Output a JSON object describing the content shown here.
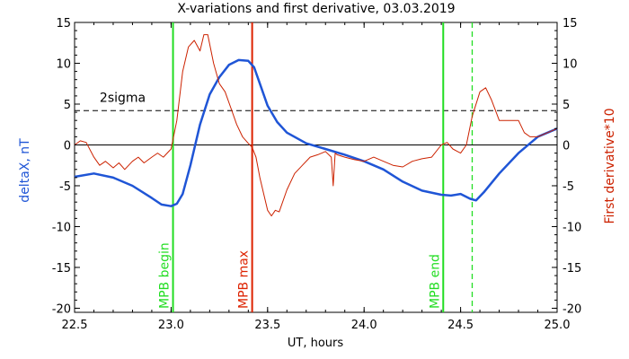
{
  "chart_data": {
    "type": "line",
    "title": "X-variations and first derivative, 03.03.2019",
    "xlabel": "UT, hours",
    "ylabel_left": "deltaX, nT",
    "ylabel_right": "First derivative*10",
    "xlim": [
      22.5,
      25.0
    ],
    "ylim": [
      -20.5,
      15
    ],
    "x_ticks": [
      22.5,
      23.0,
      23.5,
      24.0,
      24.5,
      25.0
    ],
    "x_tick_labels": [
      "22.5",
      "23.0",
      "23.5",
      "24.0",
      "24.5",
      "25.0"
    ],
    "y_ticks": [
      -20,
      -15,
      -10,
      -5,
      0,
      5,
      10,
      15
    ],
    "y_tick_labels": [
      "-20",
      "-15",
      "-10",
      "-5",
      "0",
      "5",
      "10",
      "15"
    ],
    "grid": false,
    "reference_lines": [
      {
        "type": "horizontal",
        "y": 0,
        "style": "solid",
        "color": "#000000"
      },
      {
        "type": "horizontal",
        "y": 4.2,
        "style": "dashed",
        "color": "#000000",
        "label": "2sigma"
      }
    ],
    "markers": [
      {
        "x": 23.01,
        "label": "MPB begin",
        "color": "#22dd22",
        "style": "solid"
      },
      {
        "x": 23.42,
        "label": "MPB max",
        "color": "#dd2200",
        "style": "solid"
      },
      {
        "x": 24.41,
        "label": "MPB end",
        "color": "#22dd22",
        "style": "solid"
      },
      {
        "x": 24.56,
        "label": "",
        "color": "#22dd22",
        "style": "dashed"
      }
    ],
    "series": [
      {
        "color": "#1f55d6",
        "axis": "left",
        "x": [
          22.5,
          22.6,
          22.7,
          22.8,
          22.9,
          22.95,
          23.0,
          23.03,
          23.06,
          23.1,
          23.15,
          23.2,
          23.25,
          23.3,
          23.35,
          23.4,
          23.43,
          23.46,
          23.5,
          23.55,
          23.6,
          23.7,
          23.8,
          23.9,
          24.0,
          24.1,
          24.2,
          24.3,
          24.4,
          24.45,
          24.5,
          24.55,
          24.58,
          24.62,
          24.7,
          24.8,
          24.9,
          25.0
        ],
        "values": [
          -3.9,
          -3.5,
          -4.0,
          -5.0,
          -6.5,
          -7.3,
          -7.5,
          -7.2,
          -6.0,
          -2.5,
          2.5,
          6.2,
          8.3,
          9.8,
          10.4,
          10.3,
          9.5,
          7.5,
          4.8,
          2.8,
          1.5,
          0.2,
          -0.5,
          -1.2,
          -2.0,
          -3.0,
          -4.5,
          -5.6,
          -6.1,
          -6.2,
          -6.0,
          -6.6,
          -6.8,
          -5.8,
          -3.5,
          -1.0,
          1.0,
          2.0
        ]
      },
      {
        "color": "#cc2200",
        "axis": "right",
        "x": [
          22.5,
          22.53,
          22.56,
          22.6,
          22.63,
          22.66,
          22.7,
          22.73,
          22.76,
          22.8,
          22.83,
          22.86,
          22.9,
          22.93,
          22.96,
          23.0,
          23.03,
          23.06,
          23.09,
          23.12,
          23.15,
          23.17,
          23.19,
          23.22,
          23.25,
          23.28,
          23.31,
          23.34,
          23.37,
          23.4,
          23.42,
          23.44,
          23.46,
          23.48,
          23.5,
          23.52,
          23.54,
          23.56,
          23.6,
          23.64,
          23.68,
          23.72,
          23.76,
          23.8,
          23.83,
          23.84,
          23.85,
          23.86,
          23.9,
          23.95,
          24.0,
          24.05,
          24.1,
          24.15,
          24.2,
          24.25,
          24.3,
          24.35,
          24.4,
          24.43,
          24.46,
          24.5,
          24.53,
          24.56,
          24.6,
          24.63,
          24.66,
          24.7,
          24.75,
          24.8,
          24.83,
          24.86,
          24.9,
          24.95,
          25.0
        ],
        "values": [
          0.0,
          0.5,
          0.3,
          -1.5,
          -2.5,
          -2.0,
          -2.8,
          -2.2,
          -3.0,
          -2.0,
          -1.5,
          -2.2,
          -1.5,
          -1.0,
          -1.5,
          -0.5,
          3.0,
          9.0,
          12.0,
          12.8,
          11.5,
          13.5,
          13.5,
          10.0,
          7.5,
          6.5,
          4.5,
          2.5,
          1.0,
          0.2,
          -0.3,
          -1.5,
          -4.0,
          -6.0,
          -8.0,
          -8.7,
          -8.0,
          -8.2,
          -5.5,
          -3.5,
          -2.5,
          -1.5,
          -1.2,
          -0.8,
          -1.5,
          -5.0,
          -1.0,
          -1.2,
          -1.5,
          -1.8,
          -2.0,
          -1.5,
          -2.0,
          -2.5,
          -2.7,
          -2.0,
          -1.7,
          -1.5,
          0.0,
          0.3,
          -0.5,
          -1.0,
          0.0,
          3.5,
          6.5,
          7.0,
          5.5,
          3.0,
          3.0,
          3.0,
          1.5,
          1.0,
          1.0,
          1.5,
          2.0
        ]
      }
    ]
  }
}
